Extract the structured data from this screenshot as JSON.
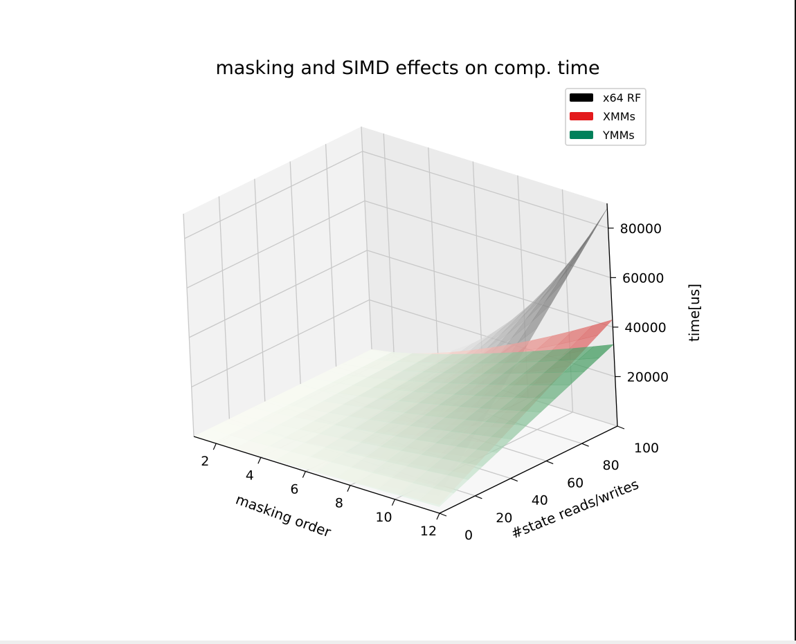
{
  "chart_data": {
    "type": "surface3d",
    "title": "masking and SIMD effects on comp. time",
    "xlabel": "masking order",
    "ylabel": "#state reads/writes",
    "zlabel": "time[us]",
    "xlim": [
      1,
      12
    ],
    "ylim": [
      0,
      100
    ],
    "zlim": [
      0,
      90000
    ],
    "x_ticks": [
      2,
      4,
      6,
      8,
      10,
      12
    ],
    "y_ticks": [
      0,
      20,
      40,
      60,
      80,
      100
    ],
    "z_ticks": [
      20000,
      40000,
      60000,
      80000
    ],
    "x_tick_labels": [
      "2",
      "4",
      "6",
      "8",
      "10",
      "12"
    ],
    "y_tick_labels": [
      "0",
      "20",
      "40",
      "60",
      "80",
      "100"
    ],
    "z_tick_labels": [
      "20000",
      "40000",
      "60000",
      "80000"
    ],
    "grid": true,
    "legend_position": "top-right",
    "series": [
      {
        "name": "x64 RF",
        "color": "#000000",
        "colormap": "Greys",
        "max_time": 88000,
        "exponent": 2.0
      },
      {
        "name": "XMMs",
        "color": "#e31a1c",
        "colormap": "Reds",
        "max_time": 43000,
        "exponent": 1.4
      },
      {
        "name": "YMMs",
        "color": "#00805a",
        "colormap": "Greens",
        "max_time": 33000,
        "exponent": 1.25
      }
    ]
  }
}
